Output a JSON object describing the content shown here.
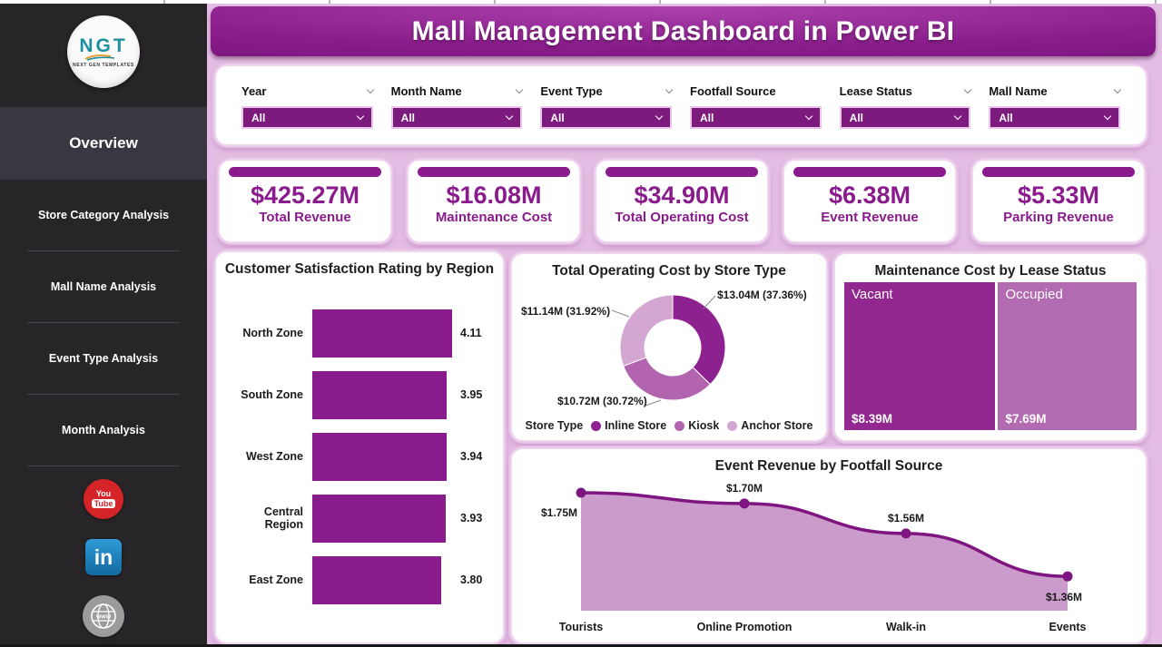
{
  "header": {
    "title": "Mall Management Dashboard in Power BI"
  },
  "sidebar": {
    "logo_text": "NGT",
    "logo_subtext": "NEXT GEN TEMPLATES",
    "nav_items": [
      {
        "label": "Overview",
        "active": true
      },
      {
        "label": "Store Category Analysis",
        "active": false
      },
      {
        "label": "Mall Name Analysis",
        "active": false
      },
      {
        "label": "Event Type Analysis",
        "active": false
      },
      {
        "label": "Month Analysis",
        "active": false
      }
    ],
    "social_icons": [
      "youtube-icon",
      "linkedin-icon",
      "website-icon"
    ]
  },
  "filters": [
    {
      "label": "Year",
      "value": "All",
      "label_chevron": true
    },
    {
      "label": "Month Name",
      "value": "All",
      "label_chevron": true
    },
    {
      "label": "Event Type",
      "value": "All",
      "label_chevron": true
    },
    {
      "label": "Footfall Source",
      "value": "All",
      "label_chevron": false
    },
    {
      "label": "Lease Status",
      "value": "All",
      "label_chevron": true
    },
    {
      "label": "Mall Name",
      "value": "All",
      "label_chevron": true
    }
  ],
  "kpis": [
    {
      "value": "$425.27M",
      "label": "Total Revenue"
    },
    {
      "value": "$16.08M",
      "label": "Maintenance Cost"
    },
    {
      "value": "$34.90M",
      "label": "Total Operating Cost"
    },
    {
      "value": "$6.38M",
      "label": "Event Revenue"
    },
    {
      "value": "$5.33M",
      "label": "Parking Revenue"
    }
  ],
  "chart_data": [
    {
      "type": "bar",
      "orientation": "horizontal",
      "title": "Customer Satisfaction Rating by Region",
      "categories": [
        "North Zone",
        "South Zone",
        "West Zone",
        "Central Region",
        "East Zone"
      ],
      "values": [
        4.11,
        3.95,
        3.94,
        3.93,
        3.8
      ],
      "value_labels": [
        "4.11",
        "3.95",
        "3.94",
        "3.93",
        "3.80"
      ],
      "xlim": [
        0,
        4.11
      ],
      "bar_color": "#8A1B8C"
    },
    {
      "type": "pie",
      "subtype": "donut",
      "title": "Total Operating Cost by Store Type",
      "legend_title": "Store Type",
      "legend_position": "bottom",
      "slices": [
        {
          "name": "Inline Store",
          "value_m": 13.04,
          "percent": 37.36,
          "label": "$13.04M (37.36%)",
          "color": "#8E2190"
        },
        {
          "name": "Kiosk",
          "value_m": 11.14,
          "percent": 31.92,
          "label": "$11.14M (31.92%)",
          "color": "#B264AE"
        },
        {
          "name": "Anchor Store",
          "value_m": 10.72,
          "percent": 30.72,
          "label": "$10.72M (30.72%)",
          "color": "#D4A7D3"
        }
      ]
    },
    {
      "type": "treemap",
      "title": "Maintenance Cost by Lease Status",
      "nodes": [
        {
          "name": "Vacant",
          "value_m": 8.39,
          "label": "$8.39M",
          "color": "#91278F"
        },
        {
          "name": "Occupied",
          "value_m": 7.69,
          "label": "$7.69M",
          "color": "#B26BB0"
        }
      ]
    },
    {
      "type": "area",
      "title": "Event Revenue by Footfall Source",
      "categories": [
        "Tourists",
        "Online Promotion",
        "Walk-in",
        "Events"
      ],
      "values": [
        1.75,
        1.7,
        1.56,
        1.36
      ],
      "point_labels": [
        "$1.75M",
        "$1.70M",
        "$1.56M",
        "$1.36M"
      ],
      "ylim": [
        1.2,
        1.85
      ],
      "line_color": "#7E1580",
      "fill_color": "#CB9CCB"
    }
  ],
  "colors": {
    "primary": "#8A1B8C",
    "page_bg": "#E3BDE3",
    "sidebar_bg": "#282529",
    "sidebar_active_bg": "#3B3741",
    "slicer_bg": "#7D1A7E"
  }
}
